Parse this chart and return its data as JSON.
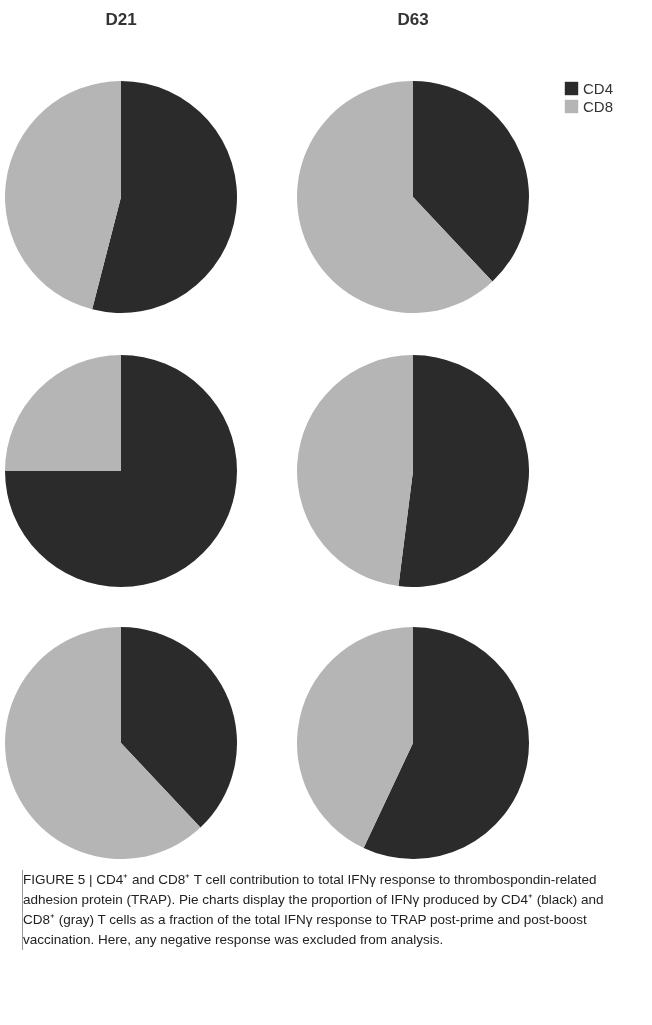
{
  "chart_data": [
    {
      "type": "pie",
      "title": "D21",
      "categories": [
        null,
        null
      ],
      "values": [
        54,
        46
      ],
      "colors": [
        "#2b2b2b",
        "#b5b5b5"
      ]
    },
    {
      "type": "pie",
      "title": "D63",
      "categories": [
        "CD4",
        "CD8"
      ],
      "values": [
        38,
        62
      ],
      "colors": [
        "#2b2b2b",
        "#b5b5b5"
      ],
      "legend": "top right"
    },
    {
      "type": "pie",
      "categories": [
        null,
        null
      ],
      "values": [
        75,
        25
      ],
      "colors": [
        "#2b2b2b",
        "#b5b5b5"
      ]
    },
    {
      "type": "pie",
      "categories": [
        null,
        null
      ],
      "values": [
        52,
        48
      ],
      "colors": [
        "#2b2b2b",
        "#b5b5b5"
      ]
    },
    {
      "type": "pie",
      "categories": [
        null,
        null
      ],
      "values": [
        38,
        62
      ],
      "colors": [
        "#2b2b2b",
        "#b5b5b5"
      ]
    },
    {
      "type": "pie",
      "categories": [
        null,
        null
      ],
      "values": [
        57,
        43
      ],
      "colors": [
        "#2b2b2b",
        "#b5b5b5"
      ],
      "annotations": [
        "FIGURE 5 | CD4⁺ and CD8⁺ T cell contribution to total IFNγ response to thrombospondin-related adhesion protein (TRAP). Pie charts display the proportion of IFNγ produced by CD4⁺ (black) and CD8⁺ (gray) T cells as a fraction of the total IFNγ response to TRAP post-prime and post-boost vaccination. Here, any negative response was excluded from analysis."
      ]
    }
  ]
}
